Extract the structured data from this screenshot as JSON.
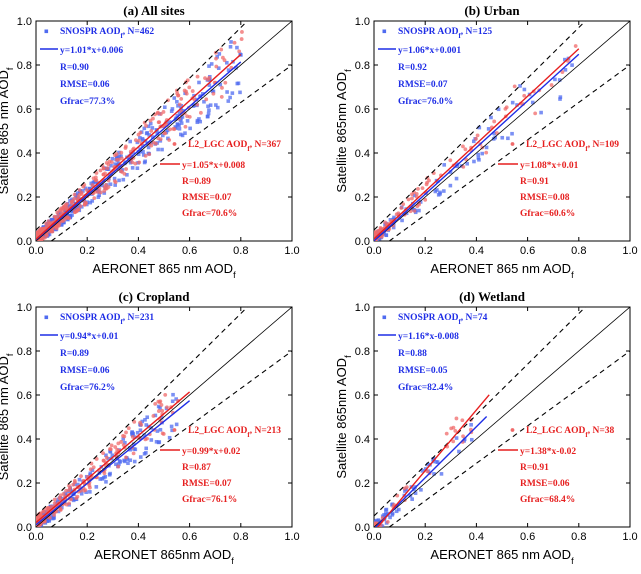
{
  "colors": {
    "snospr": "#1f2ee6",
    "l2lgc": "#e61f1f",
    "snospr_pt": "#4f6bf0",
    "l2lgc_pt": "#f06a6a"
  },
  "chart_data": [
    {
      "type": "scatter",
      "title": "(a) All sites",
      "xlabel": "AERONET 865 nm AOD",
      "ylabel": "Satellite 865 nm AOD",
      "label_sub": "f",
      "xlim": [
        0,
        1.0
      ],
      "ylim": [
        0,
        1.0
      ],
      "xticks": [
        "0.0",
        "0.2",
        "0.4",
        "0.6",
        "0.8",
        "1.0"
      ],
      "yticks": [
        "0.0",
        "0.2",
        "0.4",
        "0.6",
        "0.8",
        "1.0"
      ],
      "reference_lines": [
        "1:1",
        "upper envelope",
        "lower envelope"
      ],
      "series": [
        {
          "name": "SNOSPR AOD",
          "name_sub": "f",
          "n_text": ", N=462",
          "count": 462,
          "slope": 1.01,
          "intercept": 0.006,
          "x_range": [
            0,
            0.8
          ],
          "stats": [
            "y=1.01*x+0.006",
            "R=0.90",
            "RMSE=0.06",
            "Gfrac=77.3%"
          ]
        },
        {
          "name": "L2_LGC AOD",
          "name_sub": "f",
          "n_text": ", N=367",
          "count": 367,
          "slope": 1.05,
          "intercept": 0.008,
          "x_range": [
            0,
            0.8
          ],
          "stats": [
            "y=1.05*x+0.008",
            "R=0.89",
            "RMSE=0.07",
            "Gfrac=70.6%"
          ]
        }
      ]
    },
    {
      "type": "scatter",
      "title": "(b) Urban",
      "xlabel": "AERONET 865 nm AOD",
      "ylabel": "Satellite 865nm AOD",
      "label_sub": "f",
      "xlim": [
        0,
        1.0
      ],
      "ylim": [
        0,
        1.0
      ],
      "xticks": [
        "0.0",
        "0.2",
        "0.4",
        "0.6",
        "0.8",
        "1.0"
      ],
      "yticks": [
        "0.0",
        "0.2",
        "0.4",
        "0.6",
        "0.8",
        "1.0"
      ],
      "reference_lines": [
        "1:1",
        "upper envelope",
        "lower envelope"
      ],
      "series": [
        {
          "name": "SNOSPR AOD",
          "name_sub": "f",
          "n_text": ", N=125",
          "count": 125,
          "slope": 1.06,
          "intercept": 0.001,
          "x_range": [
            0,
            0.8
          ],
          "stats": [
            "y=1.06*x+0.001",
            "R=0.92",
            "RMSE=0.07",
            "Gfrac=76.0%"
          ]
        },
        {
          "name": "L2_LGC AOD",
          "name_sub": "f",
          "n_text": ", N=109",
          "count": 109,
          "slope": 1.08,
          "intercept": 0.01,
          "x_range": [
            0,
            0.8
          ],
          "stats": [
            "y=1.08*x+0.01",
            "R=0.91",
            "RMSE=0.08",
            "Gfrac=60.6%"
          ]
        }
      ]
    },
    {
      "type": "scatter",
      "title": "(c) Cropland",
      "xlabel": "AERONET 865nm AOD",
      "ylabel": "Satellite 865 nm AOD",
      "label_sub": "f",
      "xlim": [
        0,
        1.0
      ],
      "ylim": [
        0,
        1.0
      ],
      "xticks": [
        "0.0",
        "0.2",
        "0.4",
        "0.6",
        "0.8",
        "1.0"
      ],
      "yticks": [
        "0.0",
        "0.2",
        "0.4",
        "0.6",
        "0.8",
        "1.0"
      ],
      "reference_lines": [
        "1:1",
        "upper envelope",
        "lower envelope"
      ],
      "series": [
        {
          "name": "SNOSPR AOD",
          "name_sub": "f",
          "n_text": ", N=231",
          "count": 231,
          "slope": 0.94,
          "intercept": 0.01,
          "x_range": [
            0,
            0.6
          ],
          "stats": [
            "y=0.94*x+0.01",
            "R=0.89",
            "RMSE=0.06",
            "Gfrac=76.2%"
          ]
        },
        {
          "name": "L2_LGC AOD",
          "name_sub": "f",
          "n_text": ", N=213",
          "count": 213,
          "slope": 0.99,
          "intercept": 0.02,
          "x_range": [
            0,
            0.6
          ],
          "stats": [
            "y=0.99*x+0.02",
            "R=0.87",
            "RMSE=0.07",
            "Gfrac=76.1%"
          ]
        }
      ]
    },
    {
      "type": "scatter",
      "title": "(d) Wetland",
      "xlabel": "AERONET 865 nm AOD",
      "ylabel": "Satellite 865nm AOD",
      "label_sub": "f",
      "xlim": [
        0,
        1.0
      ],
      "ylim": [
        0,
        1.0
      ],
      "xticks": [
        "0.0",
        "0.2",
        "0.4",
        "0.6",
        "0.8",
        "1.0"
      ],
      "yticks": [
        "0.0",
        "0.2",
        "0.4",
        "0.6",
        "0.8",
        "1.0"
      ],
      "reference_lines": [
        "1:1",
        "upper envelope",
        "lower envelope"
      ],
      "series": [
        {
          "name": "SNOSPR AOD",
          "name_sub": "f",
          "n_text": ", N=74",
          "count": 74,
          "slope": 1.16,
          "intercept": -0.008,
          "x_range": [
            0,
            0.44
          ],
          "stats": [
            "y=1.16*x-0.008",
            "R=0.88",
            "RMSE=0.05",
            "Gfrac=82.4%"
          ]
        },
        {
          "name": "L2_LGC AOD",
          "name_sub": "f",
          "n_text": ", N=38",
          "count": 38,
          "slope": 1.38,
          "intercept": -0.02,
          "x_range": [
            0,
            0.45
          ],
          "stats": [
            "y=1.38*x-0.02",
            "R=0.91",
            "RMSE=0.06",
            "Gfrac=68.4%"
          ]
        }
      ]
    }
  ]
}
